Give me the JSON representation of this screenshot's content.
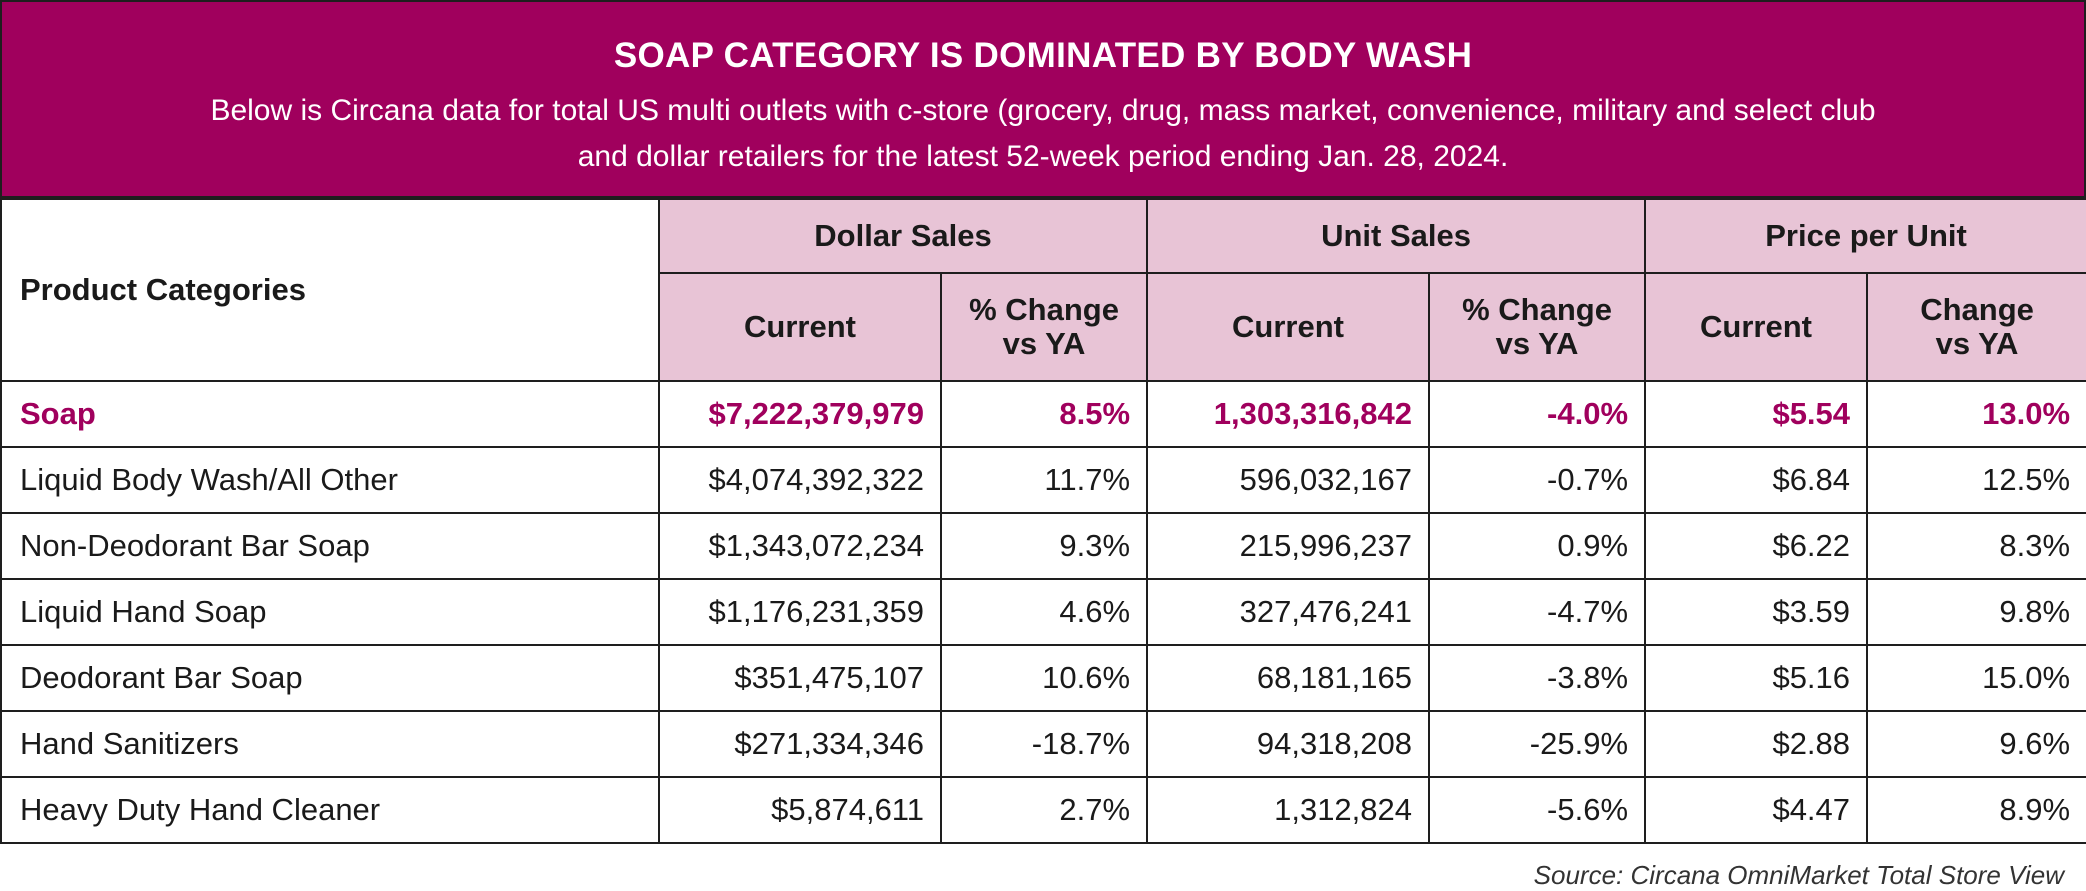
{
  "header": {
    "title": "SOAP CATEGORY IS DOMINATED BY BODY WASH",
    "subtitle": "Below is Circana data for total US multi outlets with c-store (grocery, drug, mass market, convenience, military and select club and dollar retailers for the latest 52-week period ending Jan. 28, 2024."
  },
  "chart_data": {
    "type": "table",
    "row_header": "Product Categories",
    "column_groups": [
      {
        "name": "Dollar Sales",
        "columns": [
          "Current",
          "% Change vs YA"
        ]
      },
      {
        "name": "Unit Sales",
        "columns": [
          "Current",
          "% Change vs YA"
        ]
      },
      {
        "name": "Price per Unit",
        "columns": [
          "Current",
          "Change vs YA"
        ]
      }
    ],
    "rows": [
      {
        "category": "Soap",
        "dollar_current": "$7,222,379,979",
        "dollar_change": "8.5%",
        "unit_current": "1,303,316,842",
        "unit_change": "-4.0%",
        "price_current": "$5.54",
        "price_change": "13.0%"
      },
      {
        "category": "Liquid Body Wash/All Other",
        "dollar_current": "$4,074,392,322",
        "dollar_change": "11.7%",
        "unit_current": "596,032,167",
        "unit_change": "-0.7%",
        "price_current": "$6.84",
        "price_change": "12.5%"
      },
      {
        "category": "Non-Deodorant Bar Soap",
        "dollar_current": "$1,343,072,234",
        "dollar_change": "9.3%",
        "unit_current": "215,996,237",
        "unit_change": "0.9%",
        "price_current": "$6.22",
        "price_change": "8.3%"
      },
      {
        "category": "Liquid Hand Soap",
        "dollar_current": "$1,176,231,359",
        "dollar_change": "4.6%",
        "unit_current": "327,476,241",
        "unit_change": "-4.7%",
        "price_current": "$3.59",
        "price_change": "9.8%"
      },
      {
        "category": "Deodorant Bar Soap",
        "dollar_current": "$351,475,107",
        "dollar_change": "10.6%",
        "unit_current": "68,181,165",
        "unit_change": "-3.8%",
        "price_current": "$5.16",
        "price_change": "15.0%"
      },
      {
        "category": "Hand Sanitizers",
        "dollar_current": "$271,334,346",
        "dollar_change": "-18.7%",
        "unit_current": "94,318,208",
        "unit_change": "-25.9%",
        "price_current": "$2.88",
        "price_change": "9.6%"
      },
      {
        "category": "Heavy Duty Hand Cleaner",
        "dollar_current": "$5,874,611",
        "dollar_change": "2.7%",
        "unit_current": "1,312,824",
        "unit_change": "-5.6%",
        "price_current": "$4.47",
        "price_change": "8.9%"
      }
    ]
  },
  "footer": {
    "source": "Source: Circana OmniMarket Total Store View"
  },
  "colors": {
    "accent": "#a0005d",
    "header_fill": "#e8c4d6",
    "border": "#1e1e1e"
  }
}
